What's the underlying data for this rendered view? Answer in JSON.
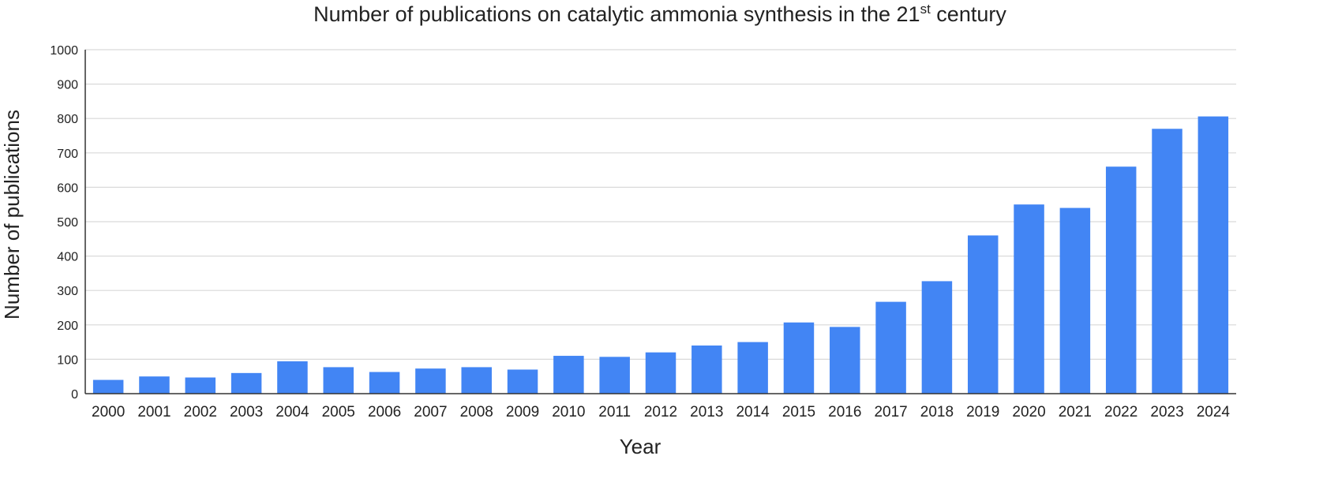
{
  "chart_data": {
    "type": "bar",
    "title": {
      "main": "Number of publications on catalytic ammonia synthesis in the 21",
      "superscript": "st",
      "suffix": " century"
    },
    "xlabel": "Year",
    "ylabel": "Number of publications",
    "categories": [
      "2000",
      "2001",
      "2002",
      "2003",
      "2004",
      "2005",
      "2006",
      "2007",
      "2008",
      "2009",
      "2010",
      "2011",
      "2012",
      "2013",
      "2014",
      "2015",
      "2016",
      "2017",
      "2018",
      "2019",
      "2020",
      "2021",
      "2022",
      "2023",
      "2024"
    ],
    "values": [
      40,
      50,
      47,
      60,
      94,
      77,
      63,
      73,
      77,
      70,
      110,
      107,
      120,
      140,
      150,
      207,
      194,
      267,
      327,
      460,
      550,
      540,
      660,
      770,
      806
    ],
    "ylim": [
      0,
      1000
    ],
    "yticks": [
      0,
      100,
      200,
      300,
      400,
      500,
      600,
      700,
      800,
      900,
      1000
    ],
    "grid": true,
    "legend": "none",
    "bar_color": "#4285F4",
    "grid_color": "#d9d9d9",
    "axis_color": "#333333"
  }
}
